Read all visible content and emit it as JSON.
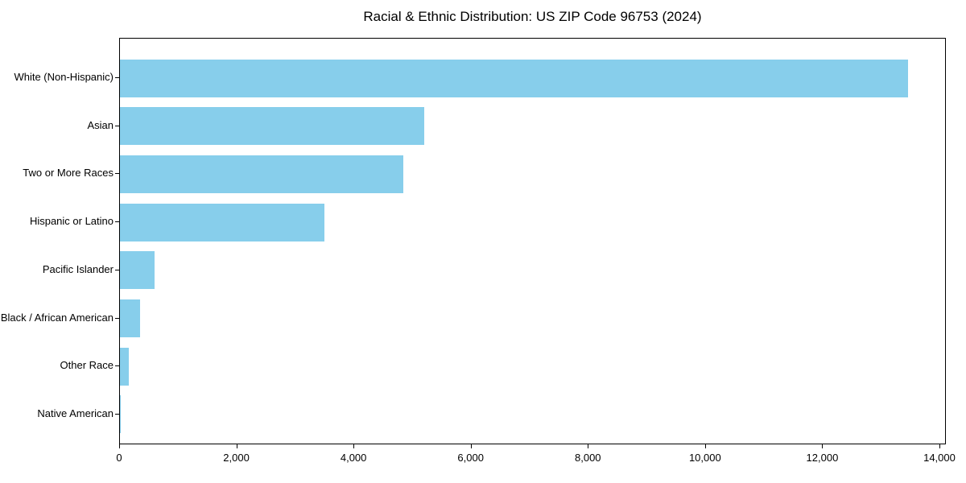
{
  "chart_data": {
    "type": "bar",
    "orientation": "horizontal",
    "title": "Racial & Ethnic Distribution: US ZIP Code 96753 (2024)",
    "xlabel": "",
    "ylabel": "",
    "categories": [
      "White (Non-Hispanic)",
      "Asian",
      "Two or More Races",
      "Hispanic or Latino",
      "Pacific Islander",
      "Black / African American",
      "Other Race",
      "Native American"
    ],
    "values": [
      13450,
      5200,
      4840,
      3490,
      590,
      345,
      150,
      15
    ],
    "xlim": [
      0,
      14110
    ],
    "xticks": [
      0,
      2000,
      4000,
      6000,
      8000,
      10000,
      12000,
      14000
    ],
    "xtick_labels": [
      "0",
      "2,000",
      "4,000",
      "6,000",
      "8,000",
      "10,000",
      "12,000",
      "14,000"
    ],
    "bar_color": "#87CEEB",
    "grid": false,
    "legend": null
  },
  "colors": {
    "bar": "#87CEEB",
    "axis": "#000000",
    "text": "#000000",
    "background": "#FFFFFF"
  }
}
